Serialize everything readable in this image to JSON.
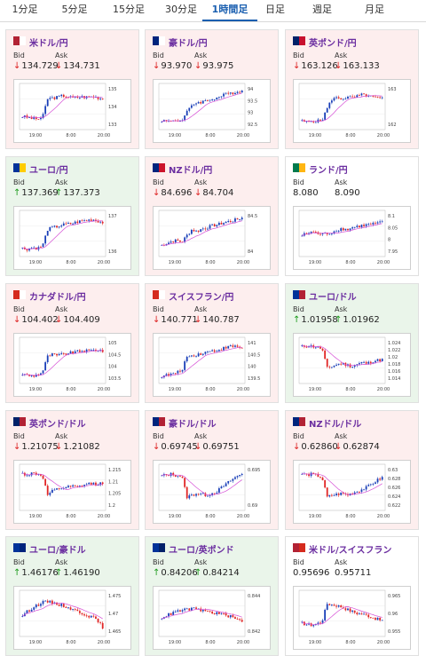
{
  "tabs": [
    {
      "label": "1分足",
      "active": false
    },
    {
      "label": "5分足",
      "active": false
    },
    {
      "label": "15分足",
      "active": false
    },
    {
      "label": "30分足",
      "active": false
    },
    {
      "label": "1時間足",
      "active": true
    },
    {
      "label": "日足",
      "active": false
    },
    {
      "label": "週足",
      "active": false
    },
    {
      "label": "月足",
      "active": false
    }
  ],
  "labels": {
    "bid": "Bid",
    "ask": "Ask"
  },
  "colors": {
    "up_candle": "#1a3fb8",
    "down_candle": "#e12727",
    "ma_line": "#d64fd6",
    "line": "#3cb0d8",
    "accent": "#1a5fb0"
  },
  "x_ticks": [
    "19:00",
    "8:00",
    "20:00"
  ],
  "cards": [
    {
      "pair": "米ドル/円",
      "flag": [
        "#b22234",
        "#ffffff"
      ],
      "dir": "down",
      "bid": "134.729",
      "ask": "134.731",
      "y_ticks": [
        "135",
        "134",
        "133"
      ],
      "shape": [
        0.25,
        0.22,
        0.2,
        0.18,
        0.22,
        0.7,
        0.72,
        0.74,
        0.78,
        0.76,
        0.72,
        0.74,
        0.75,
        0.74,
        0.76,
        0.73,
        0.7
      ]
    },
    {
      "pair": "豪ドル/円",
      "flag": [
        "#00247d",
        "#ffffff"
      ],
      "dir": "down",
      "bid": "93.970",
      "ask": "93.975",
      "y_ticks": [
        "94",
        "93.5",
        "93",
        "92.5"
      ],
      "shape": [
        0.15,
        0.12,
        0.14,
        0.16,
        0.12,
        0.35,
        0.55,
        0.6,
        0.62,
        0.65,
        0.7,
        0.72,
        0.78,
        0.82,
        0.85,
        0.88,
        0.9
      ]
    },
    {
      "pair": "英ポンド/円",
      "flag": [
        "#012169",
        "#c8102e"
      ],
      "dir": "down",
      "bid": "163.126",
      "ask": "163.133",
      "y_ticks": [
        "163",
        "162"
      ],
      "shape": [
        0.12,
        0.1,
        0.14,
        0.12,
        0.16,
        0.45,
        0.7,
        0.72,
        0.7,
        0.74,
        0.72,
        0.76,
        0.8,
        0.78,
        0.74,
        0.72,
        0.7
      ]
    },
    {
      "pair": "ユーロ/円",
      "flag": [
        "#003399",
        "#ffcc00"
      ],
      "dir": "up",
      "bid": "137.369",
      "ask": "137.373",
      "y_ticks": [
        "137",
        "136"
      ],
      "shape": [
        0.12,
        0.1,
        0.14,
        0.12,
        0.18,
        0.6,
        0.65,
        0.68,
        0.72,
        0.74,
        0.76,
        0.8,
        0.82,
        0.84,
        0.86,
        0.82,
        0.78
      ]
    },
    {
      "pair": "NZドル/円",
      "flag": [
        "#00247d",
        "#cc142b"
      ],
      "dir": "down",
      "bid": "84.696",
      "ask": "84.704",
      "y_ticks": [
        "84.5",
        "84"
      ],
      "shape": [
        0.2,
        0.25,
        0.3,
        0.32,
        0.28,
        0.45,
        0.6,
        0.55,
        0.62,
        0.65,
        0.7,
        0.72,
        0.76,
        0.8,
        0.82,
        0.86,
        0.9
      ]
    },
    {
      "pair": "ランド/円",
      "flag": [
        "#007a4d",
        "#ffb612"
      ],
      "dir": "flat",
      "bid": "8.080",
      "ask": "8.090",
      "y_ticks": [
        "8.1",
        "8.05",
        "8",
        "7.95"
      ],
      "shape": [
        0.45,
        0.5,
        0.55,
        0.5,
        0.48,
        0.5,
        0.52,
        0.6,
        0.62,
        0.6,
        0.65,
        0.68,
        0.7,
        0.72,
        0.74,
        0.76,
        0.78
      ]
    },
    {
      "pair": "カナダドル/円",
      "flag": [
        "#d52b1e",
        "#ffffff"
      ],
      "dir": "down",
      "bid": "104.402",
      "ask": "104.409",
      "y_ticks": [
        "105",
        "104.5",
        "104",
        "103.5"
      ],
      "shape": [
        0.15,
        0.12,
        0.1,
        0.14,
        0.2,
        0.6,
        0.65,
        0.62,
        0.66,
        0.68,
        0.7,
        0.72,
        0.75,
        0.74,
        0.76,
        0.78,
        0.74
      ]
    },
    {
      "pair": "スイスフラン/円",
      "flag": [
        "#d52b1e",
        "#ffffff"
      ],
      "dir": "down",
      "bid": "140.771",
      "ask": "140.787",
      "y_ticks": [
        "141",
        "140.5",
        "140",
        "139.5"
      ],
      "shape": [
        0.1,
        0.12,
        0.15,
        0.18,
        0.25,
        0.6,
        0.62,
        0.65,
        0.68,
        0.72,
        0.74,
        0.76,
        0.8,
        0.84,
        0.86,
        0.85,
        0.82
      ]
    },
    {
      "pair": "ユーロ/ドル",
      "flag": [
        "#003399",
        "#b22234"
      ],
      "dir": "up",
      "bid": "1.01958",
      "ask": "1.01962",
      "y_ticks": [
        "1.024",
        "1.022",
        "1.02",
        "1.018",
        "1.016",
        "1.014"
      ],
      "shape": [
        0.85,
        0.88,
        0.86,
        0.84,
        0.8,
        0.3,
        0.35,
        0.4,
        0.42,
        0.38,
        0.35,
        0.4,
        0.45,
        0.42,
        0.48,
        0.5,
        0.52
      ]
    },
    {
      "pair": "英ポンド/ドル",
      "flag": [
        "#012169",
        "#b22234"
      ],
      "dir": "down",
      "bid": "1.21075",
      "ask": "1.21082",
      "y_ticks": [
        "1.215",
        "1.21",
        "1.205",
        "1.2"
      ],
      "shape": [
        0.85,
        0.82,
        0.86,
        0.84,
        0.8,
        0.3,
        0.4,
        0.45,
        0.48,
        0.5,
        0.52,
        0.5,
        0.55,
        0.58,
        0.6,
        0.58,
        0.62
      ]
    },
    {
      "pair": "豪ドル/ドル",
      "flag": [
        "#00247d",
        "#b22234"
      ],
      "dir": "down",
      "bid": "0.69745",
      "ask": "0.69751",
      "y_ticks": [
        "0.695",
        "0.69"
      ],
      "shape": [
        0.8,
        0.82,
        0.84,
        0.8,
        0.78,
        0.25,
        0.3,
        0.35,
        0.32,
        0.3,
        0.35,
        0.4,
        0.5,
        0.6,
        0.7,
        0.78,
        0.85
      ]
    },
    {
      "pair": "NZドル/ドル",
      "flag": [
        "#00247d",
        "#b22234"
      ],
      "dir": "down",
      "bid": "0.62860",
      "ask": "0.62874",
      "y_ticks": [
        "0.63",
        "0.628",
        "0.626",
        "0.624",
        "0.622"
      ],
      "shape": [
        0.85,
        0.82,
        0.84,
        0.8,
        0.75,
        0.25,
        0.3,
        0.32,
        0.35,
        0.3,
        0.35,
        0.4,
        0.45,
        0.5,
        0.6,
        0.68,
        0.75
      ]
    },
    {
      "pair": "ユーロ/豪ドル",
      "flag": [
        "#003399",
        "#00247d"
      ],
      "dir": "up",
      "bid": "1.46176",
      "ask": "1.46190",
      "y_ticks": [
        "1.475",
        "1.47",
        "1.465"
      ],
      "shape": [
        0.45,
        0.55,
        0.65,
        0.72,
        0.78,
        0.8,
        0.78,
        0.74,
        0.7,
        0.66,
        0.6,
        0.55,
        0.5,
        0.45,
        0.4,
        0.3,
        0.15
      ]
    },
    {
      "pair": "ユーロ/英ポンド",
      "flag": [
        "#003399",
        "#012169"
      ],
      "dir": "up",
      "bid": "0.84206",
      "ask": "0.84214",
      "y_ticks": [
        "0.844",
        "0.842"
      ],
      "shape": [
        0.4,
        0.45,
        0.5,
        0.55,
        0.58,
        0.6,
        0.62,
        0.6,
        0.58,
        0.55,
        0.52,
        0.5,
        0.48,
        0.45,
        0.4,
        0.35,
        0.3
      ]
    },
    {
      "pair": "米ドル/スイスフラン",
      "flag": [
        "#b22234",
        "#d52b1e"
      ],
      "dir": "flat",
      "bid": "0.95696",
      "ask": "0.95711",
      "y_ticks": [
        "0.965",
        "0.96",
        "0.955"
      ],
      "shape": [
        0.25,
        0.22,
        0.2,
        0.24,
        0.3,
        0.75,
        0.72,
        0.7,
        0.66,
        0.6,
        0.55,
        0.5,
        0.48,
        0.45,
        0.4,
        0.35,
        0.32
      ]
    }
  ]
}
